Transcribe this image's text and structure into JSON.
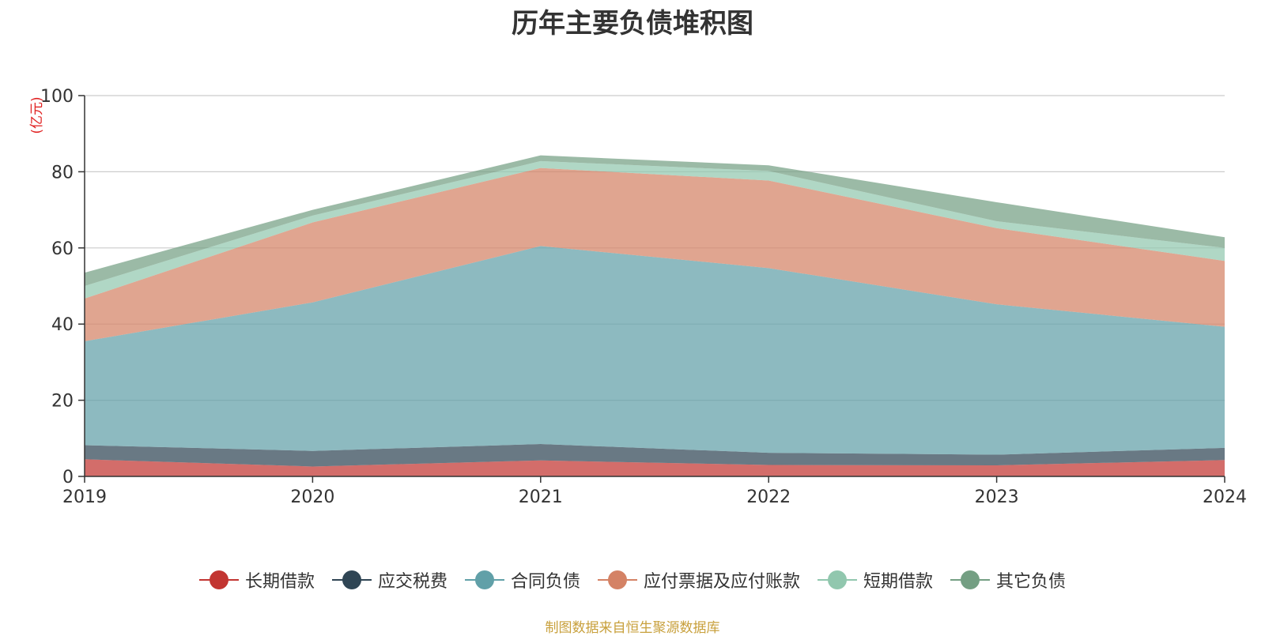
{
  "chart_data": {
    "type": "area",
    "stacked": true,
    "title": "历年主要负债堆积图",
    "ylabel": "(亿元)",
    "ylim": [
      0,
      100
    ],
    "yticks": [
      0,
      20,
      40,
      60,
      80,
      100
    ],
    "grid": true,
    "legend_position": "bottom",
    "categories": [
      "2019",
      "2020",
      "2021",
      "2022",
      "2023",
      "2024"
    ],
    "series": [
      {
        "name": "长期借款",
        "color": "#c23531",
        "values": [
          4.5,
          2.6,
          4.2,
          3.0,
          2.9,
          4.3
        ]
      },
      {
        "name": "应交税费",
        "color": "#2f4554",
        "values": [
          3.7,
          4.1,
          4.3,
          3.2,
          2.8,
          3.2
        ]
      },
      {
        "name": "合同负债",
        "color": "#61a0a8",
        "values": [
          27.3,
          39.0,
          52.0,
          48.5,
          39.5,
          31.8
        ]
      },
      {
        "name": "应付票据及应付账款",
        "color": "#d48265",
        "values": [
          11.2,
          21.0,
          20.5,
          23.0,
          20.0,
          17.3
        ]
      },
      {
        "name": "短期借款",
        "color": "#91c7ae",
        "values": [
          3.3,
          1.8,
          1.8,
          2.5,
          1.8,
          3.4
        ]
      },
      {
        "name": "其它负债",
        "color": "#749f83",
        "values": [
          3.5,
          1.5,
          1.5,
          1.5,
          5.0,
          2.8
        ]
      }
    ]
  },
  "footer": {
    "source": "制图数据来自恒生聚源数据库"
  }
}
